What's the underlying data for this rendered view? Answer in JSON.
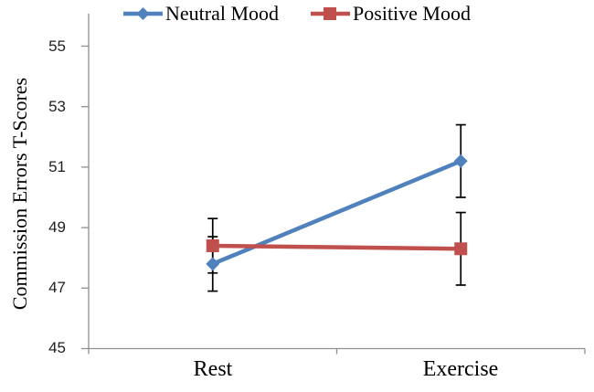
{
  "chart_data": {
    "type": "line",
    "title": "",
    "xlabel": "",
    "ylabel": "Commission Errors T-Scores",
    "categories": [
      "Rest",
      "Exercise"
    ],
    "yticks": [
      45,
      47,
      49,
      51,
      53,
      55
    ],
    "ylim": [
      45,
      56
    ],
    "grid": false,
    "legend_position": "top",
    "series": [
      {
        "name": "Neutral Mood",
        "marker": "diamond",
        "color": "#4F81BD",
        "values": [
          47.8,
          51.2
        ],
        "error_bars": [
          0.9,
          1.2
        ]
      },
      {
        "name": "Positive Mood",
        "marker": "square",
        "color": "#C0504D",
        "values": [
          48.4,
          48.3
        ],
        "error_bars": [
          0.9,
          1.2
        ]
      }
    ],
    "error_bar_color": "#000000",
    "axis_color": "#8F8F8F",
    "tick_label_color": "#1f1f1f",
    "text_color": "#000000",
    "background": "#FFFFFF"
  }
}
